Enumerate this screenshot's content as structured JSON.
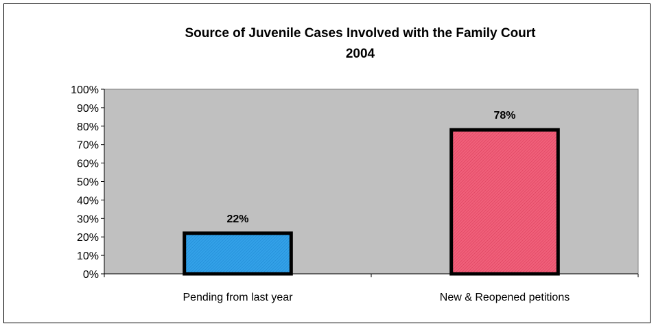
{
  "chart_data": {
    "type": "bar",
    "title": "Source of Juvenile Cases Involved with the Family Court",
    "subtitle": "2004",
    "categories": [
      "Pending from last year",
      "New & Reopened petitions"
    ],
    "values": [
      22,
      78
    ],
    "data_labels": [
      "22%",
      "78%"
    ],
    "ylim": [
      0,
      100
    ],
    "yticks": [
      0,
      10,
      20,
      30,
      40,
      50,
      60,
      70,
      80,
      90,
      100
    ],
    "ytick_labels": [
      "0%",
      "10%",
      "20%",
      "30%",
      "40%",
      "50%",
      "60%",
      "70%",
      "80%",
      "90%",
      "100%"
    ],
    "grid": false,
    "legend": "none",
    "colors": {
      "plot_background": "#c0c0c0",
      "bars": [
        "#33a1e8",
        "#f0607a"
      ],
      "bar_outline": "#000000"
    }
  }
}
